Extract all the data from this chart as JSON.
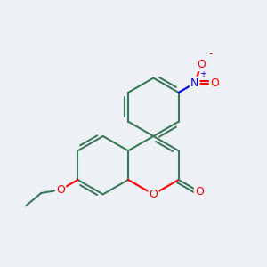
{
  "background_color": "#edf0f4",
  "bond_color": "#3a7a5a",
  "atom_colors": {
    "O": "#ff0000",
    "N": "#0000ee"
  },
  "bond_lw": 1.5,
  "figsize": [
    3.0,
    3.0
  ],
  "dpi": 100
}
